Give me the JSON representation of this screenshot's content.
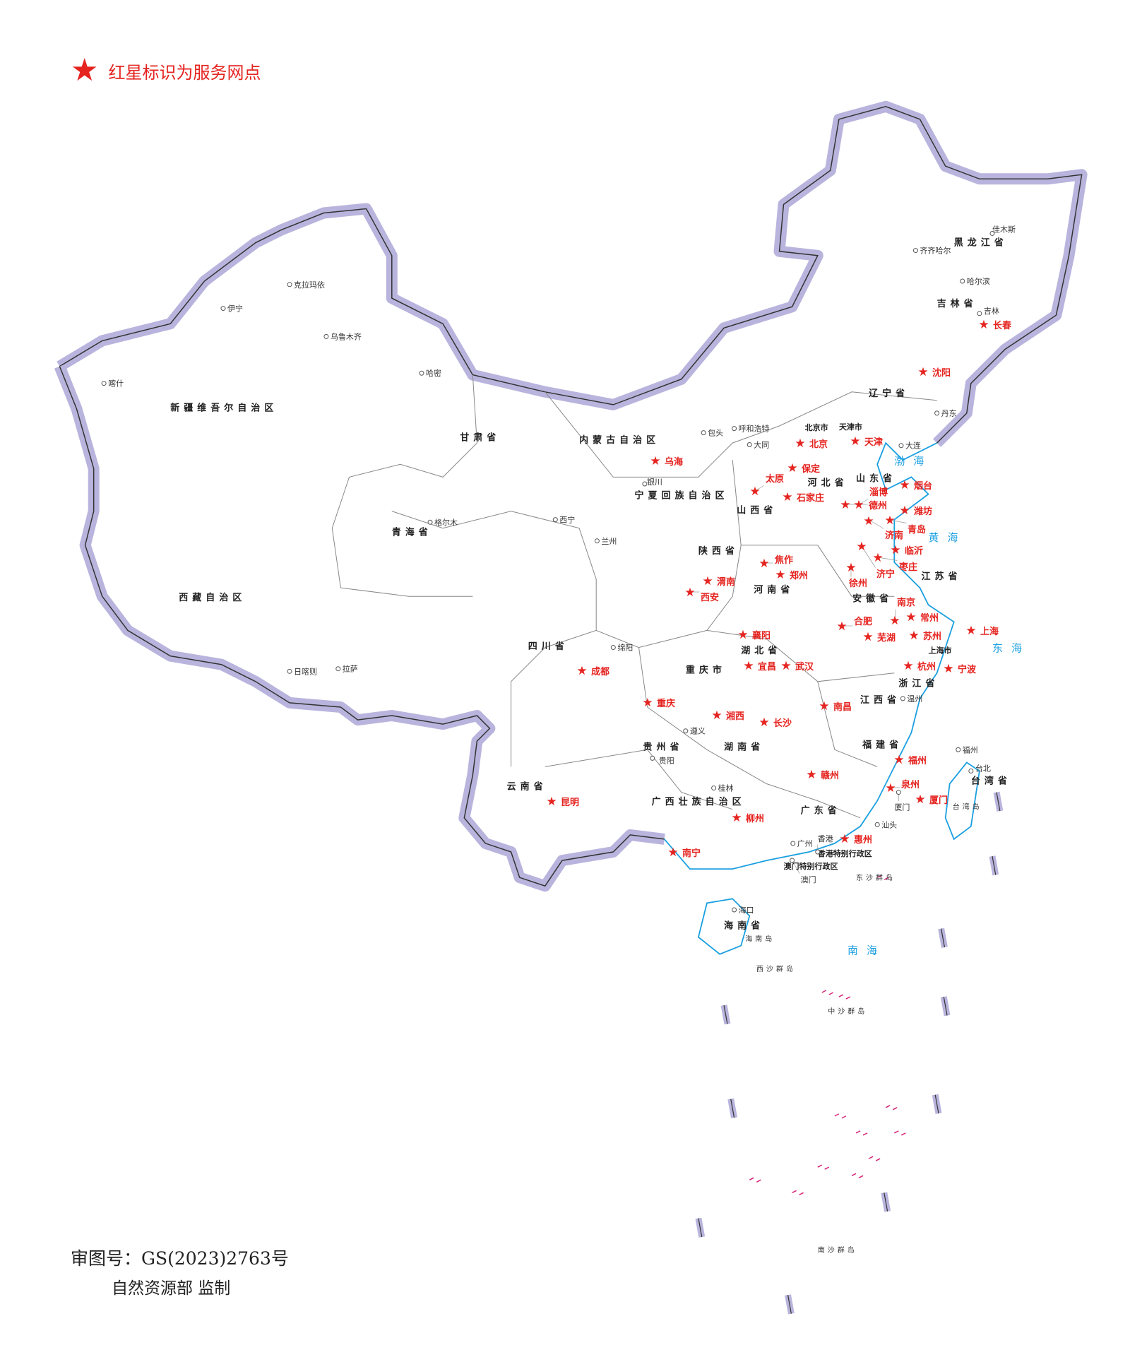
{
  "legend": {
    "icon": "red-star-icon",
    "text": "红星标识为服务网点",
    "color": "#e52420"
  },
  "footer": {
    "approval": "审图号：GS(2023)2763号",
    "authority": "自然资源部 监制"
  },
  "colors": {
    "border": "#b9b4dd",
    "border_line": "#333333",
    "coast": "#1a9fe0",
    "service_star": "#e52420",
    "island_line": "#d6247a"
  },
  "provinces": [
    "新疆维吾尔自治区",
    "西藏自治区",
    "青海省",
    "甘肃省",
    "内蒙古自治区",
    "黑龙江省",
    "吉林省",
    "辽宁省",
    "河北省",
    "山西省",
    "陕西省",
    "宁夏回族自治区",
    "四川省",
    "重庆市",
    "云南省",
    "贵州省",
    "广西壮族自治区",
    "广东省",
    "湖南省",
    "湖北省",
    "河南省",
    "山东省",
    "江苏省",
    "安徽省",
    "浙江省",
    "江西省",
    "福建省",
    "台湾省",
    "海南省",
    "北京市",
    "天津市",
    "上海市",
    "香港特别行政区",
    "澳门特别行政区"
  ],
  "seas": [
    "渤海",
    "黄海",
    "东海",
    "南海"
  ],
  "islands": [
    "东沙群岛",
    "西沙群岛",
    "中沙群岛",
    "南沙群岛",
    "海南岛",
    "台湾岛"
  ],
  "cities": [
    "乌鲁木齐",
    "拉萨",
    "西宁",
    "兰州",
    "银川",
    "呼和浩特",
    "哈尔滨",
    "贵阳",
    "海口",
    "台北",
    "福州",
    "广州",
    "香港",
    "澳门",
    "喀什",
    "伊宁",
    "克拉玛依",
    "哈密",
    "格尔木",
    "日喀则",
    "包头",
    "大同",
    "大连",
    "丹东",
    "齐齐哈尔",
    "佳木斯",
    "吉林",
    "绵阳",
    "遵义",
    "桂林",
    "汕头",
    "温州",
    "厦门"
  ],
  "service_points": [
    "北京",
    "天津",
    "保定",
    "太原",
    "石家庄",
    "德州",
    "淄博",
    "济南",
    "潍坊",
    "青岛",
    "烟台",
    "济宁",
    "临沂",
    "枣庄",
    "徐州",
    "焦作",
    "郑州",
    "襄阳",
    "宜昌",
    "武汉",
    "合肥",
    "南京",
    "芜湖",
    "常州",
    "苏州",
    "上海",
    "杭州",
    "宁波",
    "南昌",
    "长沙",
    "赣州",
    "福州",
    "泉州",
    "厦门",
    "西安",
    "成都",
    "重庆",
    "湘西",
    "柳州",
    "惠州",
    "南宁",
    "长春",
    "沈阳",
    "乌海",
    "渭南",
    "昆明"
  ]
}
